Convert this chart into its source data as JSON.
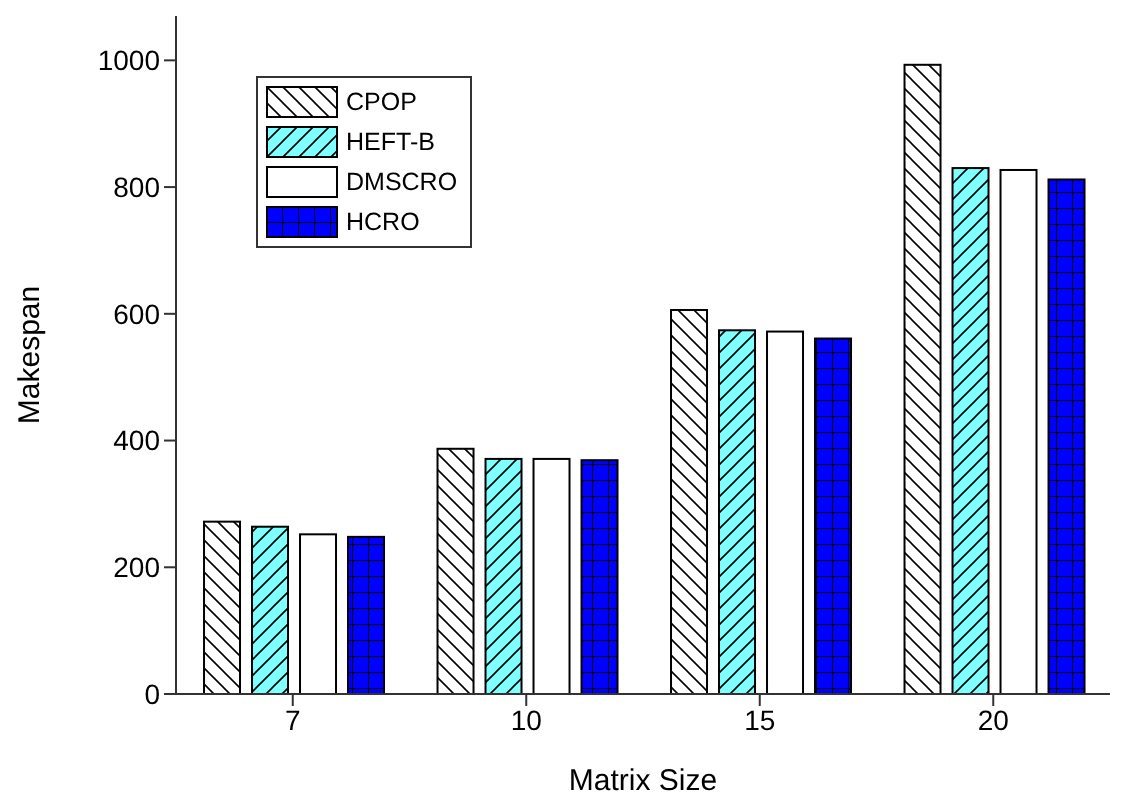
{
  "chart_data": {
    "type": "bar",
    "xlabel": "Matrix Size",
    "ylabel": "Makespan",
    "categories": [
      "7",
      "10",
      "15",
      "20"
    ],
    "series": [
      {
        "name": "CPOP",
        "color": "#ffffff",
        "values": [
          272,
          387,
          606,
          993
        ]
      },
      {
        "name": "HEFT-B",
        "color": "#80ffff",
        "values": [
          264,
          371,
          574,
          830
        ]
      },
      {
        "name": "DMSCRO",
        "color": "#ffffff",
        "values": [
          252,
          371,
          572,
          827
        ]
      },
      {
        "name": "HCRO",
        "color": "#0000ff",
        "values": [
          248,
          369,
          561,
          812
        ]
      }
    ],
    "ylim": [
      0,
      1070
    ],
    "yticks": [
      0,
      200,
      400,
      600,
      800,
      1000
    ],
    "grid": false,
    "legend": "top left"
  }
}
